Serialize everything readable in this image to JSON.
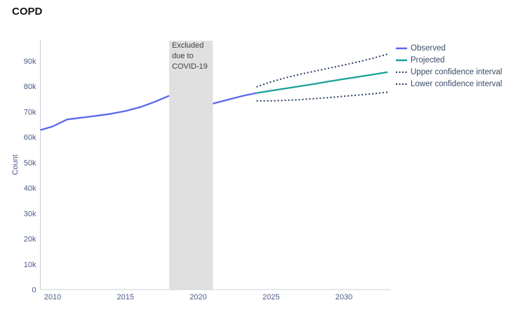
{
  "title": "COPD",
  "chart_data": {
    "type": "line",
    "title": "COPD",
    "xlabel": "",
    "ylabel": "Count",
    "x_ticks": [
      "2010",
      "2015",
      "2020",
      "2025",
      "2030"
    ],
    "x_tick_values": [
      2010,
      2015,
      2020,
      2025,
      2030
    ],
    "y_ticks": [
      "0",
      "10k",
      "20k",
      "30k",
      "40k",
      "50k",
      "60k",
      "70k",
      "80k",
      "90k"
    ],
    "y_tick_values": [
      0,
      10000,
      20000,
      30000,
      40000,
      50000,
      60000,
      70000,
      80000,
      90000
    ],
    "xlim": [
      2009.1,
      2033.2
    ],
    "ylim": [
      0,
      98280
    ],
    "grid": false,
    "legend_position": "top-right",
    "excluded_region": {
      "from": 2018,
      "to": 2021,
      "label_lines": [
        "Excluded",
        "due to",
        "COVID-19"
      ],
      "fill": "#e0e0e0"
    },
    "series": [
      {
        "name": "Observed",
        "style": "solid",
        "color": "#5b68ee",
        "segments": [
          [
            [
              2009,
              62800
            ],
            [
              2010,
              64200
            ],
            [
              2011,
              67000
            ],
            [
              2012,
              67700
            ],
            [
              2013,
              68400
            ],
            [
              2014,
              69200
            ],
            [
              2015,
              70300
            ],
            [
              2016,
              71800
            ],
            [
              2017,
              73900
            ],
            [
              2018,
              76300
            ]
          ],
          [
            [
              2021,
              73200
            ],
            [
              2022,
              74700
            ],
            [
              2023,
              76200
            ],
            [
              2024,
              77400
            ]
          ]
        ]
      },
      {
        "name": "Projected",
        "style": "solid",
        "color": "#18a299",
        "segments": [
          [
            [
              2024,
              77400
            ],
            [
              2025,
              78300
            ],
            [
              2026,
              79200
            ],
            [
              2027,
              80100
            ],
            [
              2028,
              81000
            ],
            [
              2029,
              82000
            ],
            [
              2030,
              82900
            ],
            [
              2031,
              83800
            ],
            [
              2032,
              84700
            ],
            [
              2033,
              85600
            ]
          ]
        ]
      },
      {
        "name": "Upper confidence interval",
        "style": "dotted",
        "color": "#24395f",
        "segments": [
          [
            [
              2024,
              79800
            ],
            [
              2025,
              81800
            ],
            [
              2026,
              83400
            ],
            [
              2027,
              84800
            ],
            [
              2028,
              86000
            ],
            [
              2029,
              87200
            ],
            [
              2030,
              88400
            ],
            [
              2031,
              89700
            ],
            [
              2032,
              91100
            ],
            [
              2033,
              92700
            ]
          ]
        ]
      },
      {
        "name": "Lower confidence interval",
        "style": "dotted",
        "color": "#24395f",
        "segments": [
          [
            [
              2024,
              74300
            ],
            [
              2025,
              74300
            ],
            [
              2026,
              74500
            ],
            [
              2027,
              74800
            ],
            [
              2028,
              75200
            ],
            [
              2029,
              75600
            ],
            [
              2030,
              76100
            ],
            [
              2031,
              76600
            ],
            [
              2032,
              77100
            ],
            [
              2033,
              77700
            ]
          ]
        ]
      }
    ],
    "legend": [
      {
        "label": "Observed",
        "style": "solid",
        "color": "#5b68ee"
      },
      {
        "label": "Projected",
        "style": "solid",
        "color": "#18a299"
      },
      {
        "label": "Upper confidence interval",
        "style": "dotted",
        "color": "#24395f"
      },
      {
        "label": "Lower confidence interval",
        "style": "dotted",
        "color": "#24395f"
      }
    ],
    "axis_color": "#cccfd6",
    "tick_label_color": "#4a5d88"
  }
}
